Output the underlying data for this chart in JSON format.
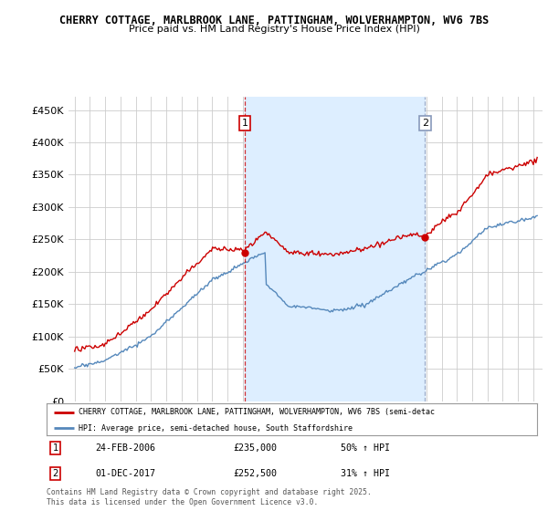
{
  "title_line1": "CHERRY COTTAGE, MARLBROOK LANE, PATTINGHAM, WOLVERHAMPTON, WV6 7BS",
  "title_line2": "Price paid vs. HM Land Registry's House Price Index (HPI)",
  "ylabel_ticks": [
    "£0",
    "£50K",
    "£100K",
    "£150K",
    "£200K",
    "£250K",
    "£300K",
    "£350K",
    "£400K",
    "£450K"
  ],
  "ytick_vals": [
    0,
    50000,
    100000,
    150000,
    200000,
    250000,
    300000,
    350000,
    400000,
    450000
  ],
  "ylim": [
    0,
    470000
  ],
  "xlim_start": 1994.6,
  "xlim_end": 2025.6,
  "property_color": "#cc0000",
  "hpi_color": "#5588bb",
  "shade_color": "#ddeeff",
  "transaction1_date": "24-FEB-2006",
  "transaction1_price": 235000,
  "transaction1_year": 2006.13,
  "transaction1_pct": "50% ↑ HPI",
  "transaction2_date": "01-DEC-2017",
  "transaction2_price": 252500,
  "transaction2_year": 2017.92,
  "transaction2_pct": "31% ↑ HPI",
  "legend_property": "CHERRY COTTAGE, MARLBROOK LANE, PATTINGHAM, WOLVERHAMPTON, WV6 7BS (semi-detac",
  "legend_hpi": "HPI: Average price, semi-detached house, South Staffordshire",
  "footer": "Contains HM Land Registry data © Crown copyright and database right 2025.\nThis data is licensed under the Open Government Licence v3.0.",
  "background_color": "#ffffff",
  "grid_color": "#cccccc"
}
